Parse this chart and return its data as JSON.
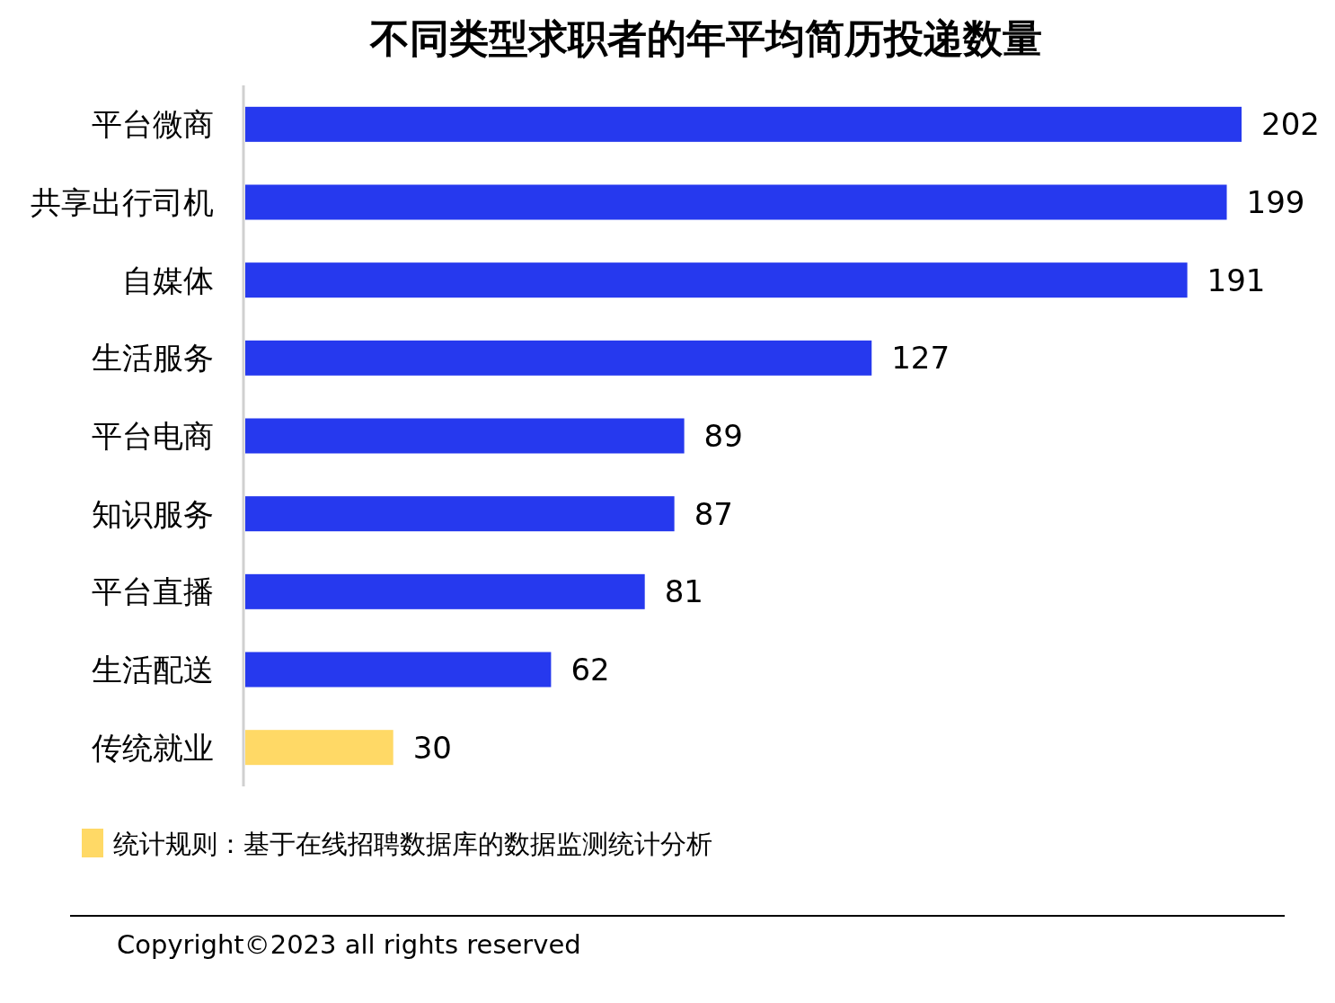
{
  "chart_data": {
    "type": "bar",
    "orientation": "horizontal",
    "title": "不同类型求职者的年平均简历投递数量",
    "categories": [
      "平台微商",
      "共享出行司机",
      "自媒体",
      "生活服务",
      "平台电商",
      "知识服务",
      "平台直播",
      "生活配送",
      "传统就业"
    ],
    "values": [
      202,
      199,
      191,
      127,
      89,
      87,
      81,
      62,
      30
    ],
    "colors": [
      "#2639ee",
      "#2639ee",
      "#2639ee",
      "#2639ee",
      "#2639ee",
      "#2639ee",
      "#2639ee",
      "#2639ee",
      "#ffd966"
    ],
    "data_labels": true,
    "annotations": [
      "统计规则：基于在线招聘数据库的数据监测统计分析",
      "Copyright©2023 all rights reserved"
    ]
  }
}
